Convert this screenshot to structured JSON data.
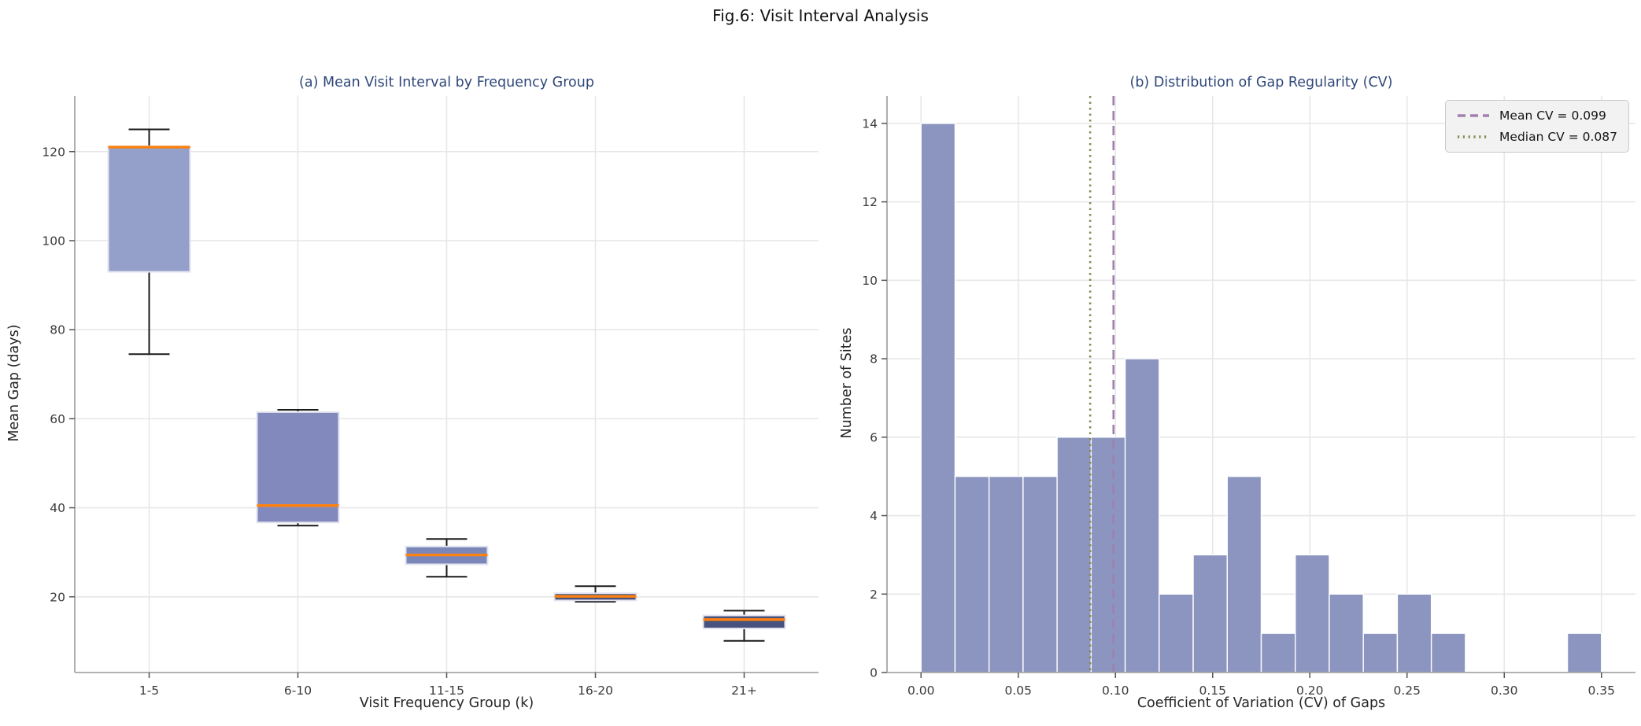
{
  "figure": {
    "title": "Fig.6: Visit Interval Analysis"
  },
  "colors": {
    "bar_fill": "#8b95bf",
    "bar_edge": "#ffffff",
    "box_fills": [
      "#94a0c9",
      "#8289bc",
      "#7b87b8",
      "#47527e",
      "#47527e"
    ],
    "box_edge": "#e2e4f0",
    "median_line": "#ff810f",
    "whisker": "#1a1a1a",
    "mean_cv_line": "#a17fae",
    "median_cv_line": "#8a8a55",
    "subplot_title": "#2f4779",
    "grid": "#e7e7e7",
    "spine": "#a6a6a6",
    "tick_text": "#3a3a3a",
    "label_text": "#262626"
  },
  "chart_data": [
    {
      "type": "box",
      "title": "(a) Mean Visit Interval by Frequency Group",
      "xlabel": "Visit Frequency Group (k)",
      "ylabel": "Mean Gap (days)",
      "categories": [
        "1-5",
        "6-10",
        "11-15",
        "16-20",
        "21+"
      ],
      "yticks": {
        "values": [
          20,
          40,
          60,
          80,
          100,
          120
        ],
        "labels": [
          "20",
          "40",
          "60",
          "80",
          "100",
          "120"
        ]
      },
      "ylim": [
        3,
        132.5
      ],
      "grid": "on",
      "boxes": [
        {
          "group": "1-5",
          "whislo": 74.5,
          "q1": 93.0,
          "med": 121.0,
          "q3": 121.2,
          "whishi": 125.0
        },
        {
          "group": "6-10",
          "whislo": 36.0,
          "q1": 36.7,
          "med": 40.5,
          "q3": 61.5,
          "whishi": 62.0
        },
        {
          "group": "11-15",
          "whislo": 24.5,
          "q1": 27.3,
          "med": 29.4,
          "q3": 31.3,
          "whishi": 33.0
        },
        {
          "group": "16-20",
          "whislo": 18.9,
          "q1": 19.2,
          "med": 20.1,
          "q3": 20.8,
          "whishi": 22.4
        },
        {
          "group": "21+",
          "whislo": 10.1,
          "q1": 12.9,
          "med": 14.9,
          "q3": 15.8,
          "whishi": 16.9
        }
      ]
    },
    {
      "type": "bar",
      "subtype": "histogram",
      "title": "(b) Distribution of Gap Regularity (CV)",
      "xlabel": "Coefficient of Variation (CV) of Gaps",
      "ylabel": "Number of Sites",
      "bin_start": 0,
      "bin_width": 0.0175,
      "counts": [
        14,
        5,
        5,
        5,
        6,
        6,
        8,
        2,
        3,
        5,
        1,
        3,
        2,
        1,
        2,
        1,
        0,
        0,
        0,
        1
      ],
      "xticks": {
        "values": [
          0,
          0.05,
          0.1,
          0.15,
          0.2,
          0.25,
          0.3,
          0.35
        ],
        "labels": [
          "0.00",
          "0.05",
          "0.10",
          "0.15",
          "0.20",
          "0.25",
          "0.30",
          "0.35"
        ]
      },
      "yticks": {
        "values": [
          0,
          2,
          4,
          6,
          8,
          10,
          12,
          14
        ],
        "labels": [
          "0",
          "2",
          "4",
          "6",
          "8",
          "10",
          "12",
          "14"
        ]
      },
      "xlim": [
        -0.0175,
        0.3675
      ],
      "ylim": [
        0,
        14.7
      ],
      "grid": "on",
      "legend_position": "upper right",
      "mean_line": {
        "value": 0.099,
        "label": "Mean CV = 0.099",
        "style": "dashed"
      },
      "median_line": {
        "value": 0.087,
        "label": "Median CV = 0.087",
        "style": "dotted"
      }
    }
  ]
}
